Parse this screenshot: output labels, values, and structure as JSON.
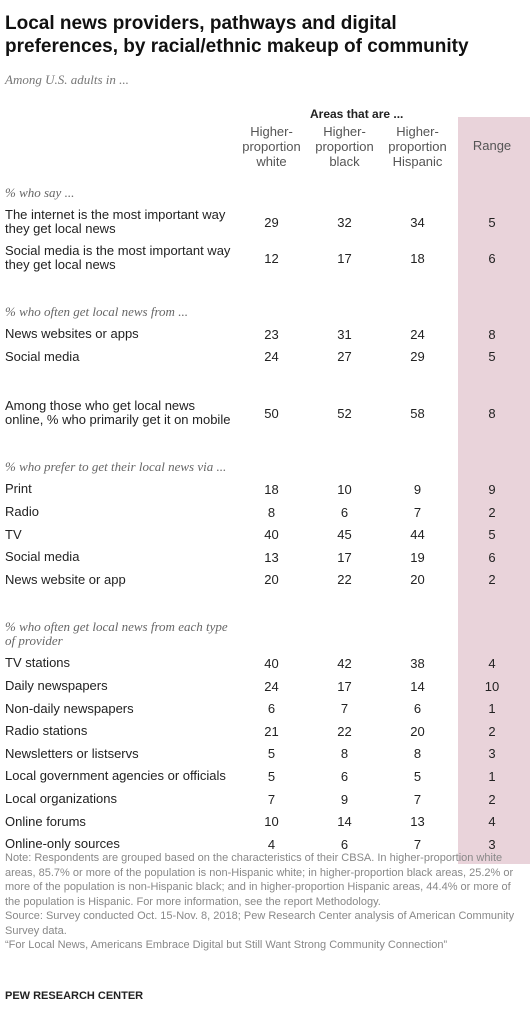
{
  "header": {
    "title": "Local news providers, pathways and digital preferences, by racial/ethnic makeup of community",
    "subtitle": "Among U.S. adults in ..."
  },
  "table": {
    "group_header": "Areas that are ...",
    "columns": [
      "Higher-proportion white",
      "Higher-proportion black",
      "Higher-proportion Hispanic"
    ],
    "range_header": "Range",
    "sections": [
      {
        "heading": "% who say ...",
        "rows": [
          {
            "label": "The internet is the most important way they get local news",
            "values": [
              29,
              32,
              34
            ],
            "range": 5
          },
          {
            "label": "Social media is the most important way they get local news",
            "values": [
              12,
              17,
              18
            ],
            "range": 6
          }
        ]
      },
      {
        "heading": "% who often get local news from ...",
        "rows": [
          {
            "label": "News websites or apps",
            "values": [
              23,
              31,
              24
            ],
            "range": 8
          },
          {
            "label": "Social media",
            "values": [
              24,
              27,
              29
            ],
            "range": 5
          }
        ]
      },
      {
        "rows": [
          {
            "label": "Among those who get local news online, % who primarily get it on mobile",
            "values": [
              50,
              52,
              58
            ],
            "range": 8
          }
        ]
      },
      {
        "heading": "% who prefer to get their local news via ...",
        "rows": [
          {
            "label": "Print",
            "values": [
              18,
              10,
              9
            ],
            "range": 9
          },
          {
            "label": "Radio",
            "values": [
              8,
              6,
              7
            ],
            "range": 2
          },
          {
            "label": "TV",
            "values": [
              40,
              45,
              44
            ],
            "range": 5
          },
          {
            "label": "Social media",
            "values": [
              13,
              17,
              19
            ],
            "range": 6
          },
          {
            "label": "News website or app",
            "values": [
              20,
              22,
              20
            ],
            "range": 2
          }
        ]
      },
      {
        "heading": "% who often get local news from each type of provider",
        "rows": [
          {
            "label": "TV stations",
            "values": [
              40,
              42,
              38
            ],
            "range": 4
          },
          {
            "label": "Daily newspapers",
            "values": [
              24,
              17,
              14
            ],
            "range": 10
          },
          {
            "label": "Non-daily newspapers",
            "values": [
              6,
              7,
              6
            ],
            "range": 1
          },
          {
            "label": "Radio stations",
            "values": [
              21,
              22,
              20
            ],
            "range": 2
          },
          {
            "label": "Newsletters or listservs",
            "values": [
              5,
              8,
              8
            ],
            "range": 3
          },
          {
            "label": "Local government agencies or officials",
            "values": [
              5,
              6,
              5
            ],
            "range": 1
          },
          {
            "label": "Local organizations",
            "values": [
              7,
              9,
              7
            ],
            "range": 2
          },
          {
            "label": "Online forums",
            "values": [
              10,
              14,
              13
            ],
            "range": 4
          },
          {
            "label": "Online-only sources",
            "values": [
              4,
              6,
              7
            ],
            "range": 3
          }
        ]
      }
    ]
  },
  "notes": {
    "note": "Note: Respondents are grouped based on the characteristics of their CBSA. In higher-proportion white areas, 85.7% or more of the population is non-Hispanic white; in higher-proportion black areas, 25.2% or more of the population is non-Hispanic black; and in higher-proportion Hispanic areas, 44.4% or more of the population is Hispanic. For more information, see the report Methodology.",
    "source": "Source: Survey conducted Oct. 15-Nov. 8, 2018; Pew Research Center analysis of American Community Survey data.",
    "report": "“For Local News, Americans Embrace Digital but Still Want Strong Community Connection”"
  },
  "footer": "PEW RESEARCH CENTER"
}
